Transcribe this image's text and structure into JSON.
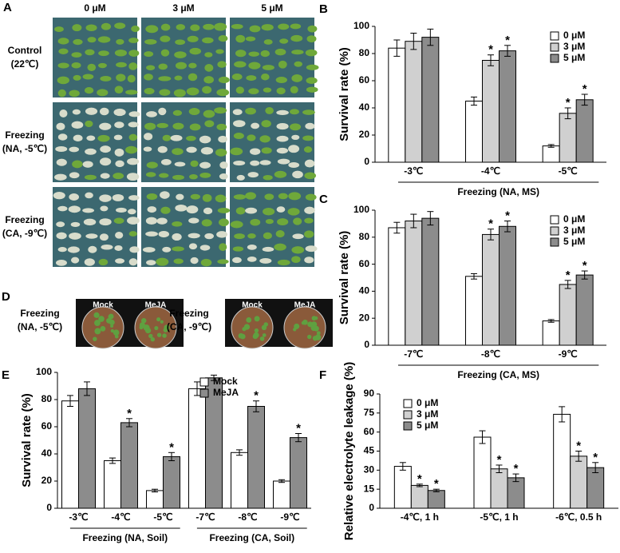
{
  "panel_A": {
    "letter": "A",
    "columns": [
      "0 μM",
      "3 μM",
      "5 μM"
    ],
    "rows": [
      [
        "Control",
        "(22℃)"
      ],
      [
        "Freezing",
        "(NA, -5℃)"
      ],
      [
        "Freezing",
        "(CA, -9℃)"
      ]
    ]
  },
  "panel_D": {
    "letter": "D",
    "groups": [
      {
        "label": [
          "Freezing",
          "(NA, -5℃)"
        ],
        "pots": [
          "Mock",
          "MeJA"
        ]
      },
      {
        "label": [
          "Freezing",
          "(CA, -9℃)"
        ],
        "pots": [
          "Mock",
          "MeJA"
        ]
      }
    ]
  },
  "chart_data": [
    {
      "type": "bar",
      "letter": "B",
      "y_label": "Survival rate (%)",
      "x_groups": [
        "Freezing (NA, MS)"
      ],
      "categories": [
        "-3℃",
        "-4℃",
        "-5℃"
      ],
      "ylim": [
        0,
        100
      ],
      "yticks": [
        0,
        20,
        40,
        60,
        80,
        100
      ],
      "legend": "upper right",
      "series": [
        {
          "name": "0 μM",
          "color": "#ffffff",
          "values": [
            84,
            45,
            12
          ],
          "errors": [
            6,
            3,
            1
          ],
          "significance": [
            null,
            null,
            null
          ]
        },
        {
          "name": "3 μM",
          "color": "#d0d0d0",
          "values": [
            89,
            75,
            36
          ],
          "errors": [
            6,
            4,
            4
          ],
          "significance": [
            null,
            "*",
            "*"
          ]
        },
        {
          "name": "5 μM",
          "color": "#8c8c8c",
          "values": [
            92,
            82,
            46
          ],
          "errors": [
            6,
            4,
            4
          ],
          "significance": [
            null,
            "*",
            "*"
          ]
        }
      ]
    },
    {
      "type": "bar",
      "letter": "C",
      "y_label": "Survival rate (%)",
      "x_groups": [
        "Freezing (CA, MS)"
      ],
      "categories": [
        "-7℃",
        "-8℃",
        "-9℃"
      ],
      "ylim": [
        0,
        100
      ],
      "yticks": [
        0,
        20,
        40,
        60,
        80,
        100
      ],
      "legend": "upper right",
      "series": [
        {
          "name": "0 μM",
          "color": "#ffffff",
          "values": [
            87,
            51,
            18
          ],
          "errors": [
            4,
            2,
            1
          ],
          "significance": [
            null,
            null,
            null
          ]
        },
        {
          "name": "3 μM",
          "color": "#d0d0d0",
          "values": [
            92,
            82,
            45
          ],
          "errors": [
            5,
            4,
            3
          ],
          "significance": [
            null,
            "*",
            "*"
          ]
        },
        {
          "name": "5 μM",
          "color": "#8c8c8c",
          "values": [
            94,
            88,
            52
          ],
          "errors": [
            5,
            4,
            3
          ],
          "significance": [
            null,
            "*",
            "*"
          ]
        }
      ]
    },
    {
      "type": "bar",
      "letter": "E",
      "y_label": "Survival rate (%)",
      "x_groups": [
        "Freezing (NA, Soil)",
        "Freezing (CA, Soil)"
      ],
      "categories": [
        "-3℃",
        "-4℃",
        "-5℃",
        "-7℃",
        "-8℃",
        "-9℃"
      ],
      "ylim": [
        0,
        100
      ],
      "yticks": [
        0,
        20,
        40,
        60,
        80,
        100
      ],
      "legend": "upper center",
      "series": [
        {
          "name": "Mock",
          "color": "#ffffff",
          "values": [
            79,
            35,
            13,
            88,
            41,
            20
          ],
          "errors": [
            4,
            2,
            1,
            5,
            2,
            1
          ],
          "significance": [
            null,
            null,
            null,
            null,
            null,
            null
          ]
        },
        {
          "name": "MeJA",
          "color": "#8c8c8c",
          "values": [
            88,
            63,
            38,
            96,
            75,
            52
          ],
          "errors": [
            5,
            3,
            3,
            2,
            4,
            3
          ],
          "significance": [
            null,
            "*",
            "*",
            null,
            "*",
            "*"
          ]
        }
      ]
    },
    {
      "type": "bar",
      "letter": "F",
      "y_label": "Relative electrolyte leakage (%)",
      "categories": [
        "-4℃, 1 h",
        "-5℃, 1 h",
        "-6℃, 0.5 h"
      ],
      "ylim": [
        0,
        90
      ],
      "yticks": [
        0,
        15,
        30,
        45,
        60,
        75,
        90
      ],
      "legend": "upper left",
      "series": [
        {
          "name": "0 μM",
          "color": "#ffffff",
          "values": [
            33,
            56,
            74
          ],
          "errors": [
            3,
            5,
            6
          ],
          "significance": [
            null,
            null,
            null
          ]
        },
        {
          "name": "3 μM",
          "color": "#d0d0d0",
          "values": [
            18,
            31,
            41
          ],
          "errors": [
            1,
            3,
            4
          ],
          "significance": [
            "*",
            "*",
            "*"
          ]
        },
        {
          "name": "5 μM",
          "color": "#8c8c8c",
          "values": [
            14,
            24,
            32
          ],
          "errors": [
            1,
            3,
            4
          ],
          "significance": [
            "*",
            "*",
            "*"
          ]
        }
      ]
    }
  ]
}
